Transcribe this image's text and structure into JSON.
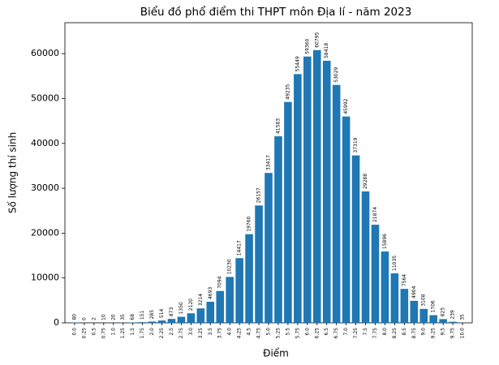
{
  "chart_data": {
    "type": "bar",
    "title": "Biểu đồ phổ điểm thi THPT môn Địa lí - năm 2023",
    "x_label": "Điểm",
    "y_label": "Số lượng thí sinh",
    "categories": [
      "0.0",
      "0.25",
      "0.5",
      "0.75",
      "1.0",
      "1.25",
      "1.5",
      "1.75",
      "2.0",
      "2.25",
      "2.5",
      "2.75",
      "3.0",
      "3.25",
      "3.5",
      "3.75",
      "4.0",
      "4.25",
      "4.5",
      "4.75",
      "5.0",
      "5.25",
      "5.5",
      "5.75",
      "6.0",
      "6.25",
      "6.5",
      "6.75",
      "7.0",
      "7.25",
      "7.5",
      "7.75",
      "8.0",
      "8.25",
      "8.5",
      "8.75",
      "9.0",
      "9.25",
      "9.5",
      "9.75",
      "10.0"
    ],
    "values": [
      80,
      0,
      2,
      10,
      20,
      35,
      68,
      151,
      285,
      514,
      873,
      1350,
      2120,
      3214,
      4693,
      7094,
      10230,
      14417,
      19760,
      26157,
      33417,
      41583,
      49235,
      55449,
      59360,
      60795,
      58418,
      53029,
      45992,
      37319,
      29288,
      21874,
      15896,
      11035,
      7564,
      4904,
      3108,
      1706,
      825,
      239,
      35
    ],
    "color": "#1f77b4",
    "ylim": [
      0,
      66900
    ],
    "yticks": [
      0,
      10000,
      20000,
      30000,
      40000,
      50000,
      60000
    ]
  }
}
